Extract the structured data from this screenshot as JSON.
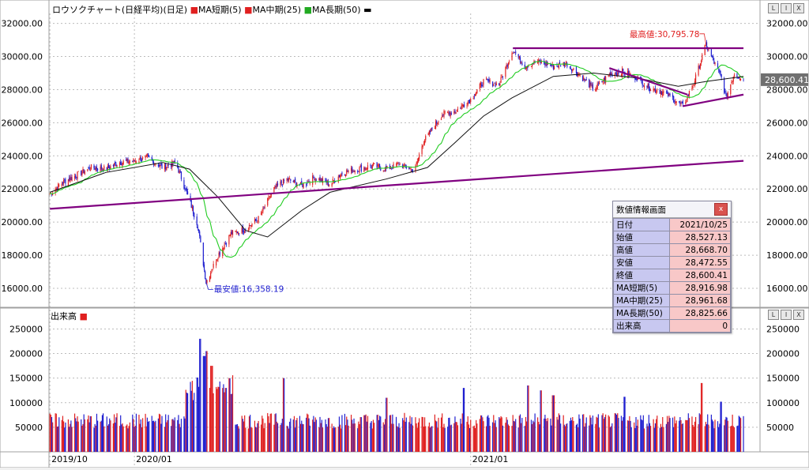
{
  "window": {
    "buttons": [
      "L",
      "I",
      "X"
    ]
  },
  "price_header": {
    "title": "ロウソクチャート(日経平均)(日足)",
    "ma_short": "MA短期(5)",
    "ma_mid": "MA中期(25)",
    "ma_long": "MA長期(50)",
    "colors": {
      "ma_short": "#e02020",
      "ma_mid": "#e02020",
      "ma_long": "#22aa22",
      "long_marker": "#000000"
    }
  },
  "volume_header": {
    "title": "出来高"
  },
  "annotations": {
    "high_label": "最高値:30,795.78",
    "low_label": "最安値:16,358.19",
    "current_price": "28,600.41"
  },
  "info_panel": {
    "title": "数値情報画面",
    "close": "x",
    "rows": [
      {
        "label": "日付",
        "value": "2021/10/25"
      },
      {
        "label": "始値",
        "value": "28,527.13"
      },
      {
        "label": "高値",
        "value": "28,668.70"
      },
      {
        "label": "安値",
        "value": "28,472.55"
      },
      {
        "label": "終値",
        "value": "28,600.41"
      },
      {
        "label": "MA短期(5)",
        "value": "28,916.98"
      },
      {
        "label": "MA中期(25)",
        "value": "28,961.68"
      },
      {
        "label": "MA長期(50)",
        "value": "28,825.66"
      },
      {
        "label": "出来高",
        "value": "0"
      }
    ]
  },
  "chart_data": [
    {
      "type": "candlestick",
      "y_ticks": [
        "32000.00",
        "30000.00",
        "28000.00",
        "26000.00",
        "24000.00",
        "22000.00",
        "20000.00",
        "18000.00",
        "16000.00"
      ],
      "ylim": [
        15000,
        32600
      ],
      "x_labels": [
        "2019/10",
        "2020/01",
        "2021/01"
      ],
      "colors": {
        "up": "#e02020",
        "down": "#2020d0",
        "trendline": "#800080"
      },
      "close_path": [
        [
          "2019-10-01",
          21700
        ],
        [
          "2019-10-15",
          22400
        ],
        [
          "2019-11-01",
          22900
        ],
        [
          "2019-11-15",
          23300
        ],
        [
          "2019-12-01",
          23200
        ],
        [
          "2019-12-15",
          23600
        ],
        [
          "2020-01-01",
          23700
        ],
        [
          "2020-01-15",
          23900
        ],
        [
          "2020-02-01",
          23300
        ],
        [
          "2020-02-15",
          23600
        ],
        [
          "2020-03-01",
          21300
        ],
        [
          "2020-03-10",
          19800
        ],
        [
          "2020-03-19",
          16358
        ],
        [
          "2020-04-01",
          18000
        ],
        [
          "2020-04-15",
          19300
        ],
        [
          "2020-05-01",
          19600
        ],
        [
          "2020-05-15",
          20200
        ],
        [
          "2020-06-01",
          22000
        ],
        [
          "2020-06-15",
          22600
        ],
        [
          "2020-07-01",
          22200
        ],
        [
          "2020-07-15",
          22700
        ],
        [
          "2020-08-01",
          22300
        ],
        [
          "2020-08-15",
          23000
        ],
        [
          "2020-09-01",
          23200
        ],
        [
          "2020-09-15",
          23400
        ],
        [
          "2020-10-01",
          23200
        ],
        [
          "2020-10-15",
          23500
        ],
        [
          "2020-11-01",
          23100
        ],
        [
          "2020-11-10",
          24800
        ],
        [
          "2020-11-20",
          25600
        ],
        [
          "2020-12-01",
          26500
        ],
        [
          "2020-12-15",
          26700
        ],
        [
          "2021-01-01",
          27400
        ],
        [
          "2021-01-15",
          28500
        ],
        [
          "2021-02-01",
          28300
        ],
        [
          "2021-02-16",
          30400
        ],
        [
          "2021-03-01",
          29400
        ],
        [
          "2021-03-15",
          29700
        ],
        [
          "2021-04-01",
          29400
        ],
        [
          "2021-04-15",
          29600
        ],
        [
          "2021-05-01",
          28800
        ],
        [
          "2021-05-15",
          28000
        ],
        [
          "2021-06-01",
          28900
        ],
        [
          "2021-06-15",
          29100
        ],
        [
          "2021-07-01",
          28700
        ],
        [
          "2021-07-15",
          28100
        ],
        [
          "2021-08-01",
          27800
        ],
        [
          "2021-08-20",
          27000
        ],
        [
          "2021-09-01",
          28400
        ],
        [
          "2021-09-14",
          30700
        ],
        [
          "2021-10-01",
          28700
        ],
        [
          "2021-10-06",
          27500
        ],
        [
          "2021-10-15",
          29000
        ],
        [
          "2021-10-25",
          28600
        ]
      ],
      "ma_long_path": [
        [
          "2019-10-01",
          21800
        ],
        [
          "2019-12-01",
          23000
        ],
        [
          "2020-02-01",
          23600
        ],
        [
          "2020-03-01",
          23200
        ],
        [
          "2020-04-01",
          21500
        ],
        [
          "2020-05-01",
          19500
        ],
        [
          "2020-05-25",
          19100
        ],
        [
          "2020-07-01",
          20700
        ],
        [
          "2020-08-01",
          21800
        ],
        [
          "2020-10-01",
          22600
        ],
        [
          "2020-11-15",
          23300
        ],
        [
          "2020-12-15",
          24800
        ],
        [
          "2021-01-15",
          26400
        ],
        [
          "2021-02-15",
          27500
        ],
        [
          "2021-04-01",
          28800
        ],
        [
          "2021-05-15",
          29000
        ],
        [
          "2021-07-01",
          28700
        ],
        [
          "2021-08-15",
          28200
        ],
        [
          "2021-09-15",
          28500
        ],
        [
          "2021-10-25",
          28800
        ]
      ],
      "trendlines": [
        {
          "from": [
            "2019-10-01",
            20800
          ],
          "to": [
            "2021-10-25",
            23700
          ]
        },
        {
          "from": [
            "2021-02-16",
            30500
          ],
          "to": [
            "2021-10-25",
            30500
          ]
        },
        {
          "from": [
            "2021-06-01",
            29300
          ],
          "to": [
            "2021-08-25",
            27700
          ]
        },
        {
          "from": [
            "2021-08-20",
            27000
          ],
          "to": [
            "2021-10-25",
            27700
          ]
        }
      ],
      "high": {
        "date": "2021-09-14",
        "value": 30795.78
      },
      "low": {
        "date": "2020-03-19",
        "value": 16358.19
      }
    },
    {
      "type": "bar",
      "y_ticks": [
        "250000",
        "200000",
        "150000",
        "100000",
        "50000"
      ],
      "ylim": [
        0,
        270000
      ],
      "base_level": 60000,
      "spikes": [
        [
          "2020-03-13",
          230000
        ],
        [
          "2020-03-17",
          195000
        ],
        [
          "2020-03-20",
          205000
        ],
        [
          "2020-03-25",
          175000
        ],
        [
          "2020-04-10",
          130000
        ],
        [
          "2020-06-12",
          150000
        ],
        [
          "2020-10-02",
          110000
        ],
        [
          "2020-12-25",
          130000
        ],
        [
          "2021-03-05",
          135000
        ],
        [
          "2021-03-19",
          125000
        ],
        [
          "2021-04-01",
          115000
        ],
        [
          "2021-06-18",
          112000
        ],
        [
          "2021-09-10",
          140000
        ],
        [
          "2021-10-01",
          102000
        ]
      ]
    }
  ]
}
